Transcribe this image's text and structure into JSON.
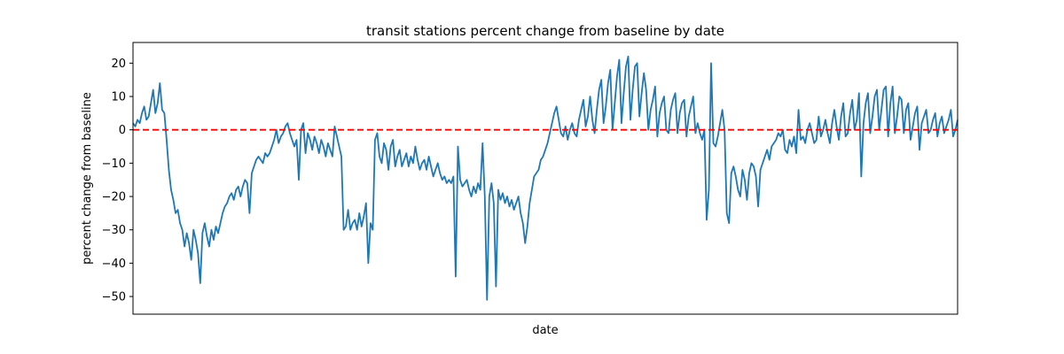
{
  "chart_data": {
    "type": "line",
    "title": "transit stations percent change from baseline by date",
    "xlabel": "date",
    "ylabel": "percent change from baseline",
    "ylim": [
      -55.3,
      26.2
    ],
    "yticks": [
      20,
      10,
      0,
      -10,
      -20,
      -30,
      -40,
      -50
    ],
    "ytick_labels": [
      "20",
      "10",
      "0",
      "−10",
      "−20",
      "−30",
      "−40",
      "−50"
    ],
    "grid": false,
    "baseline": {
      "value": 0,
      "color": "#ff0000",
      "style": "dashed"
    },
    "line_color": "#1f77b4",
    "series": [
      {
        "values": [
          2,
          1,
          3,
          2,
          5,
          7,
          3,
          4,
          8,
          12,
          5,
          8,
          14,
          6,
          5,
          -3,
          -12,
          -18,
          -21,
          -25,
          -24,
          -28,
          -30,
          -35,
          -31,
          -34,
          -39,
          -30,
          -33,
          -37,
          -46,
          -31,
          -28,
          -32,
          -35,
          -30,
          -33,
          -29,
          -31,
          -28,
          -25,
          -23,
          -22,
          -20,
          -19,
          -21,
          -18,
          -17,
          -20,
          -17,
          -15,
          -16,
          -25,
          -13,
          -11,
          -9,
          -8,
          -9,
          -10,
          -7,
          -8,
          -7,
          -5,
          -3,
          0,
          -4,
          -2,
          -1,
          1,
          2,
          -1,
          -3,
          -5,
          -3,
          -15,
          0,
          2,
          -7,
          -1,
          -3,
          -6,
          -2,
          -4,
          -7,
          -3,
          -5,
          -8,
          -4,
          -6,
          -8,
          1,
          -2,
          -5,
          -8,
          -30,
          -29,
          -24,
          -30,
          -28,
          -27,
          -30,
          -25,
          -29,
          -26,
          -22,
          -40,
          -28,
          -30,
          -3,
          -1,
          -8,
          -10,
          -4,
          -6,
          -12,
          -5,
          -3,
          -11,
          -8,
          -6,
          -11,
          -9,
          -7,
          -11,
          -8,
          -10,
          -5,
          -9,
          -12,
          -10,
          -9,
          -12,
          -8,
          -11,
          -14,
          -12,
          -10,
          -13,
          -15,
          -14,
          -16,
          -15,
          -16,
          -14,
          -44,
          -5,
          -15,
          -17,
          -16,
          -15,
          -18,
          -20,
          -17,
          -19,
          -16,
          -18,
          -4,
          -20,
          -51,
          -20,
          -16,
          -22,
          -47,
          -18,
          -21,
          -19,
          -22,
          -20,
          -23,
          -21,
          -24,
          -22,
          -20,
          -25,
          -28,
          -34,
          -29,
          -22,
          -18,
          -14,
          -13,
          -12,
          -9,
          -8,
          -6,
          -4,
          -1,
          2,
          5,
          7,
          3,
          -1,
          -2,
          1,
          -3,
          0,
          2,
          -1,
          -2,
          3,
          6,
          9,
          1,
          4,
          10,
          3,
          -1,
          6,
          12,
          15,
          2,
          7,
          14,
          18,
          0,
          8,
          16,
          21,
          2,
          11,
          19,
          22,
          3,
          12,
          19,
          20,
          4,
          11,
          17,
          12,
          0,
          6,
          9,
          13,
          -2,
          5,
          8,
          10,
          0,
          -1,
          6,
          9,
          11,
          -1,
          5,
          8,
          9,
          -2,
          4,
          7,
          10,
          -1,
          2,
          -1,
          -3,
          0,
          -27,
          -18,
          20,
          -4,
          -5,
          -2,
          2,
          6,
          0,
          -25,
          -28,
          -13,
          -11,
          -14,
          -18,
          -20,
          -12,
          -15,
          -21,
          -13,
          -10,
          -11,
          -14,
          -23,
          -12,
          -10,
          -8,
          -6,
          -9,
          -5,
          -4,
          -3,
          -1,
          -2,
          0,
          -6,
          -7,
          -3,
          -5,
          -2,
          -7,
          6,
          -3,
          -2,
          -4,
          0,
          2,
          -1,
          -4,
          -3,
          4,
          -2,
          0,
          3,
          -1,
          -4,
          2,
          6,
          1,
          -3,
          4,
          8,
          -2,
          -1,
          5,
          9,
          0,
          3,
          11,
          -14,
          2,
          8,
          11,
          -1,
          4,
          10,
          12,
          0,
          6,
          12,
          13,
          -2,
          8,
          13,
          -1,
          4,
          10,
          9,
          -1,
          6,
          8,
          -3,
          1,
          5,
          7,
          -6,
          2,
          4,
          6,
          -1,
          0,
          3,
          5,
          -2,
          2,
          4,
          -1,
          1,
          3,
          6,
          -2,
          0,
          3
        ]
      }
    ]
  }
}
